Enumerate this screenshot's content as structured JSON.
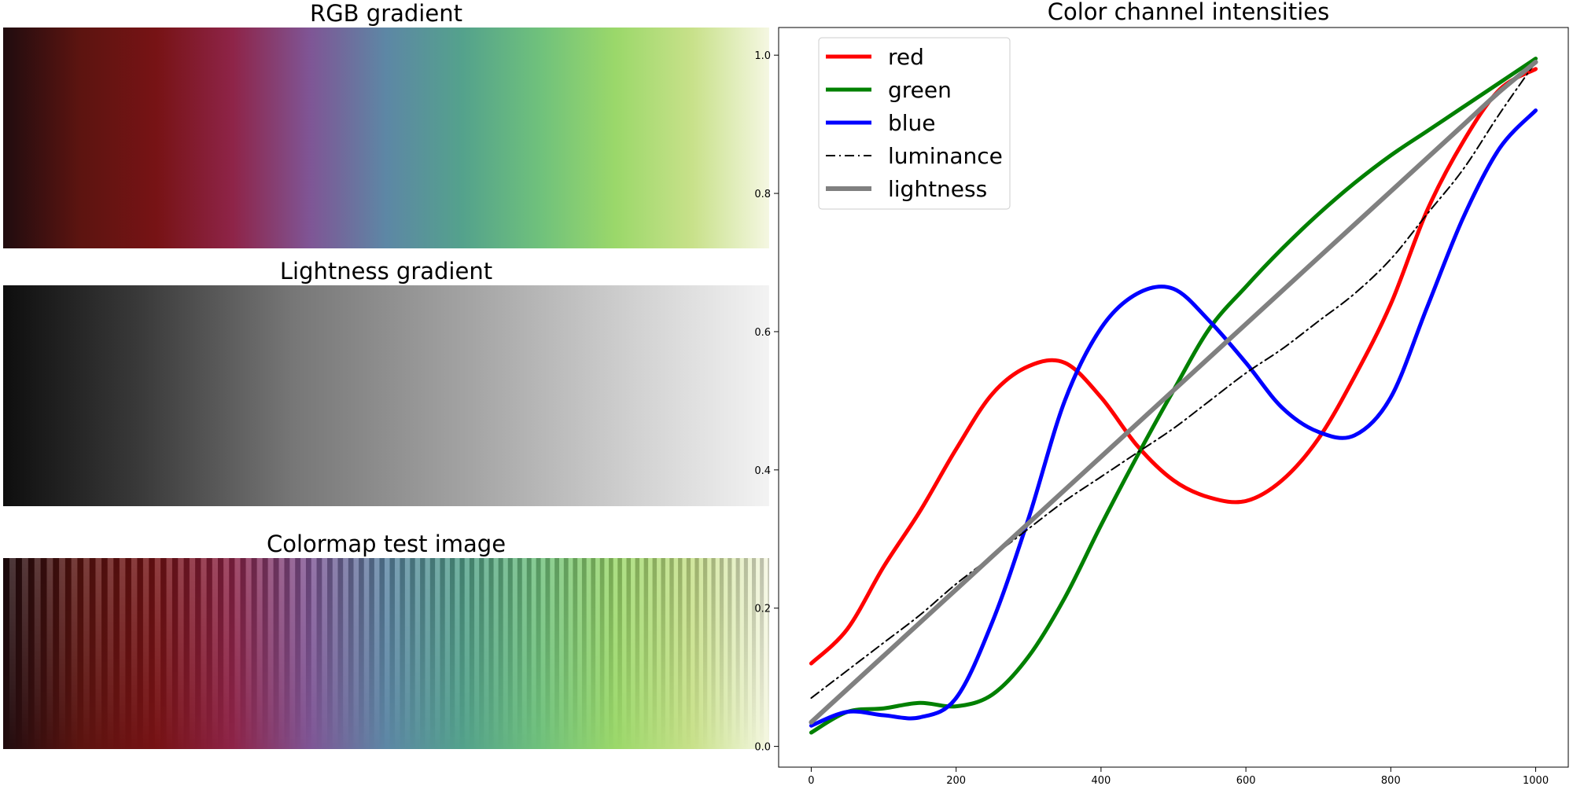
{
  "gradient_stops": [
    "#200c0f",
    "#5c1410",
    "#771315",
    "#8e2448",
    "#7f5595",
    "#5d87a5",
    "#54a28c",
    "#6fc17c",
    "#9bd86a",
    "#c8e18a",
    "#f5f7e2"
  ],
  "panels": {
    "rgb_title": "RGB gradient",
    "lightness_title": "Lightness gradient",
    "test_title": "Colormap test image"
  },
  "chart_data": {
    "type": "line",
    "title": "Color channel intensities",
    "xlabel": "",
    "ylabel": "",
    "xlim": [
      -45,
      1045
    ],
    "ylim": [
      -0.03,
      1.04
    ],
    "xticks": [
      0,
      200,
      400,
      600,
      800,
      1000
    ],
    "xtick_labels": [
      "0",
      "200",
      "400",
      "600",
      "800",
      "1000"
    ],
    "yticks": [
      0.0,
      0.2,
      0.4,
      0.6,
      0.8,
      1.0
    ],
    "ytick_labels": [
      "0.0",
      "0.2",
      "0.4",
      "0.6",
      "0.8",
      "1.0"
    ],
    "grid": false,
    "legend_position": "upper-left",
    "x": [
      0,
      50,
      100,
      150,
      200,
      250,
      300,
      350,
      400,
      450,
      500,
      550,
      600,
      650,
      700,
      750,
      800,
      850,
      900,
      950,
      1000
    ],
    "series": [
      {
        "name": "red",
        "color": "#ff0000",
        "style": "solid",
        "width": 5,
        "values": [
          0.12,
          0.17,
          0.26,
          0.34,
          0.43,
          0.51,
          0.55,
          0.555,
          0.505,
          0.435,
          0.385,
          0.36,
          0.355,
          0.385,
          0.445,
          0.535,
          0.64,
          0.775,
          0.875,
          0.95,
          0.98
        ]
      },
      {
        "name": "green",
        "color": "#008000",
        "style": "solid",
        "width": 5,
        "values": [
          0.02,
          0.05,
          0.055,
          0.063,
          0.058,
          0.075,
          0.13,
          0.215,
          0.32,
          0.42,
          0.515,
          0.605,
          0.665,
          0.72,
          0.77,
          0.815,
          0.855,
          0.89,
          0.925,
          0.96,
          0.995
        ]
      },
      {
        "name": "blue",
        "color": "#0000ff",
        "style": "solid",
        "width": 5,
        "values": [
          0.03,
          0.05,
          0.045,
          0.042,
          0.07,
          0.18,
          0.33,
          0.5,
          0.605,
          0.655,
          0.662,
          0.615,
          0.555,
          0.49,
          0.455,
          0.45,
          0.505,
          0.635,
          0.765,
          0.865,
          0.92
        ]
      },
      {
        "name": "luminance",
        "color": "#000000",
        "style": "dashdot",
        "width": 2,
        "values": [
          0.07,
          0.11,
          0.15,
          0.19,
          0.235,
          0.275,
          0.315,
          0.355,
          0.39,
          0.425,
          0.46,
          0.5,
          0.54,
          0.575,
          0.615,
          0.655,
          0.705,
          0.77,
          0.835,
          0.915,
          0.99
        ]
      },
      {
        "name": "lightness",
        "color": "#808080",
        "style": "solid",
        "width": 6,
        "values": [
          0.035,
          0.083,
          0.131,
          0.179,
          0.227,
          0.275,
          0.323,
          0.371,
          0.419,
          0.467,
          0.515,
          0.563,
          0.611,
          0.659,
          0.707,
          0.755,
          0.803,
          0.851,
          0.899,
          0.947,
          0.99
        ]
      }
    ]
  }
}
